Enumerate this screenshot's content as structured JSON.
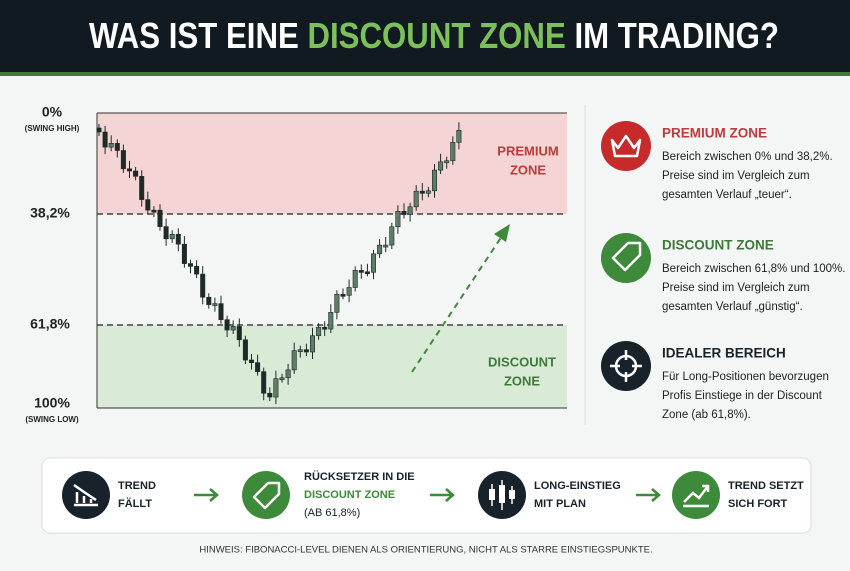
{
  "header": {
    "title_parts": [
      "WAS IST EINE ",
      "DISCOUNT ZONE",
      " IM TRADING?"
    ]
  },
  "chart": {
    "levels": [
      {
        "label": "0%",
        "sublabel": "(SWING HIGH)"
      },
      {
        "label": "38,2%"
      },
      {
        "label": "61,8%"
      },
      {
        "label": "100%",
        "sublabel": "(SWING LOW)"
      }
    ],
    "premium_zone": [
      "PREMIUM",
      "ZONE"
    ],
    "discount_zone": [
      "DISCOUNT",
      "ZONE"
    ]
  },
  "sidebar": [
    {
      "title": "PREMIUM ZONE",
      "lines": [
        "Bereich zwischen 0% und 38,2%.",
        "Preise sind im Vergleich zum",
        "gesamten Verlauf „teuer“."
      ]
    },
    {
      "title": "DISCOUNT ZONE",
      "lines": [
        "Bereich zwischen 61,8% und 100%.",
        "Preise sind im Vergleich zum",
        "gesamten Verlauf „günstig“."
      ]
    },
    {
      "title": "IDEALER BEREICH",
      "lines": [
        "Für Long-Positionen bevorzugen",
        "Profis Einstiege in der Discount",
        "Zone (ab 61,8%)."
      ]
    }
  ],
  "steps": [
    {
      "lines": [
        "TREND",
        "FÄLLT"
      ]
    },
    {
      "lines": [
        "RÜCKSETZER IN DIE",
        "DISCOUNT ZONE",
        "(AB 61,8%)"
      ]
    },
    {
      "lines": [
        "LONG-EINSTIEG",
        "MIT PLAN"
      ]
    },
    {
      "lines": [
        "TREND SETZT",
        "SICH FORT"
      ]
    }
  ],
  "footnote": "HINWEIS: FIBONACCI-LEVEL DIENEN ALS ORIENTIERUNG, NICHT ALS STARRE EINSTIEGSPUNKTE."
}
